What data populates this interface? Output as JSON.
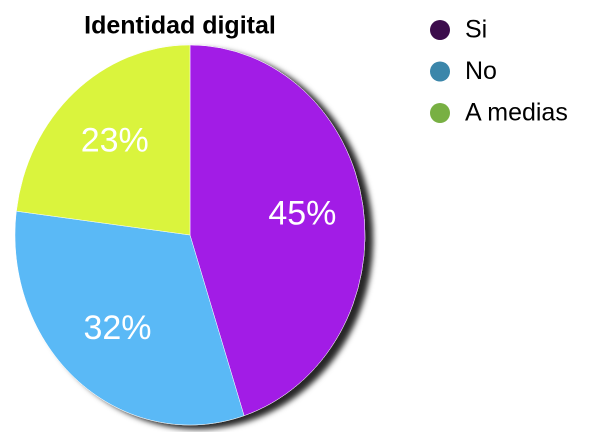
{
  "chart_data": {
    "type": "pie",
    "title": "Identidad digital",
    "categories": [
      "Si",
      "No",
      "A medias"
    ],
    "values": [
      45,
      32,
      23
    ],
    "value_labels": [
      "45%",
      "32%",
      "23%"
    ],
    "colors": [
      "#a21be6",
      "#5ab9f6",
      "#daf43c"
    ],
    "legend_colors": [
      "#3c0c4c",
      "#3b86aa",
      "#78b043"
    ],
    "legend": "right"
  }
}
